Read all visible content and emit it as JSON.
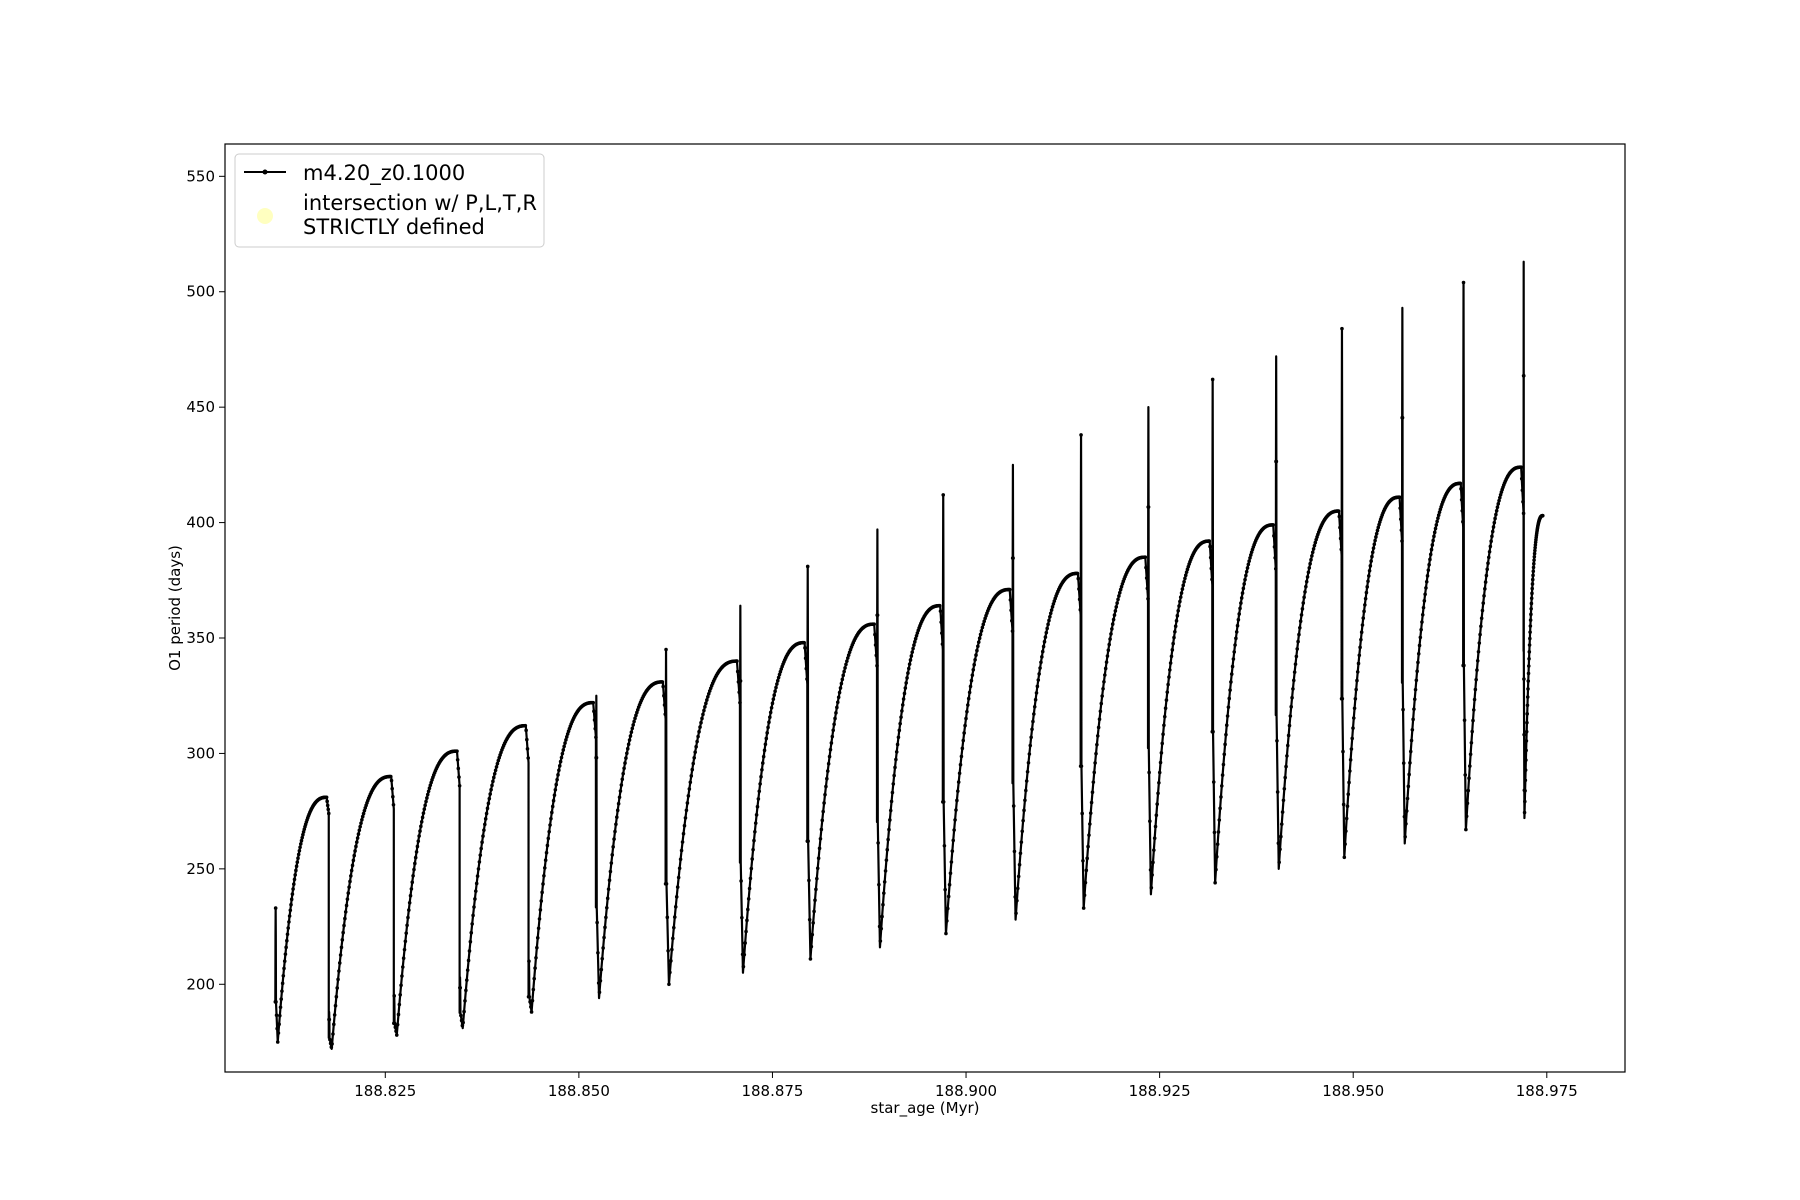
{
  "chart_data": {
    "type": "line",
    "title": "",
    "xlabel": "star_age (Myr)",
    "ylabel": "O1 period (days)",
    "xlim": [
      188.8043,
      188.9851
    ],
    "ylim": [
      162,
      564
    ],
    "x_ticks": [
      "188.825",
      "188.850",
      "188.875",
      "188.900",
      "188.925",
      "188.950",
      "188.975"
    ],
    "y_ticks": [
      "200",
      "250",
      "300",
      "350",
      "400",
      "450",
      "500",
      "550"
    ],
    "grid": false,
    "legend_position": "top-left",
    "legend": [
      {
        "label": "m4.20_z0.1000",
        "marker": "line-with-dot",
        "color": "#000000"
      },
      {
        "label_lines": [
          "intersection w/ P,L,T,R",
          "STRICTLY defined"
        ],
        "marker": "circle",
        "color": "#ffffc0"
      }
    ],
    "series": [
      {
        "name": "m4.20_z0.1000",
        "color": "#000000",
        "cycles": [
          {
            "start": 188.8108,
            "end": 188.8177,
            "spike": 233,
            "trough": 175,
            "peak": 281,
            "drop": 274
          },
          {
            "start": 188.8177,
            "end": 188.8261,
            "spike": 188,
            "trough": 172,
            "peak": 290,
            "drop": 276
          },
          {
            "start": 188.8261,
            "end": 188.8346,
            "spike": 195,
            "trough": 178,
            "peak": 301,
            "drop": 286
          },
          {
            "start": 188.8346,
            "end": 188.8435,
            "spike": 203,
            "trough": 181,
            "peak": 312,
            "drop": 296
          },
          {
            "start": 188.8435,
            "end": 188.8522,
            "spike": 210,
            "trough": 188,
            "peak": 322,
            "drop": 307
          },
          {
            "start": 188.8522,
            "end": 188.8612,
            "spike": 325,
            "trough": 194,
            "peak": 331,
            "drop": 315
          },
          {
            "start": 188.8612,
            "end": 188.8708,
            "spike": 345,
            "trough": 200,
            "peak": 340,
            "drop": 322
          },
          {
            "start": 188.8708,
            "end": 188.8795,
            "spike": 364,
            "trough": 205,
            "peak": 348,
            "drop": 330
          },
          {
            "start": 188.8795,
            "end": 188.8885,
            "spike": 381,
            "trough": 211,
            "peak": 356,
            "drop": 338
          },
          {
            "start": 188.8885,
            "end": 188.897,
            "spike": 397,
            "trough": 216,
            "peak": 364,
            "drop": 345
          },
          {
            "start": 188.897,
            "end": 188.906,
            "spike": 412,
            "trough": 222,
            "peak": 371,
            "drop": 353
          },
          {
            "start": 188.906,
            "end": 188.9148,
            "spike": 425,
            "trough": 228,
            "peak": 378,
            "drop": 360
          },
          {
            "start": 188.9148,
            "end": 188.9235,
            "spike": 438,
            "trough": 233,
            "peak": 385,
            "drop": 367
          },
          {
            "start": 188.9235,
            "end": 188.9318,
            "spike": 450,
            "trough": 239,
            "peak": 392,
            "drop": 373
          },
          {
            "start": 188.9318,
            "end": 188.94,
            "spike": 462,
            "trough": 244,
            "peak": 399,
            "drop": 380
          },
          {
            "start": 188.94,
            "end": 188.9485,
            "spike": 472,
            "trough": 250,
            "peak": 405,
            "drop": 386
          },
          {
            "start": 188.9485,
            "end": 188.9563,
            "spike": 484,
            "trough": 255,
            "peak": 411,
            "drop": 392
          },
          {
            "start": 188.9563,
            "end": 188.9642,
            "spike": 493,
            "trough": 261,
            "peak": 417,
            "drop": 398
          },
          {
            "start": 188.9642,
            "end": 188.972,
            "spike": 504,
            "trough": 267,
            "peak": 424,
            "drop": 404
          },
          {
            "start": 188.972,
            "end": 188.9745,
            "spike": 513,
            "trough": 272,
            "peak": 403,
            "drop": 403
          }
        ]
      },
      {
        "name": "intersection w/ P,L,T,R STRICTLY defined",
        "color": "#ffffc0",
        "points": []
      }
    ]
  }
}
